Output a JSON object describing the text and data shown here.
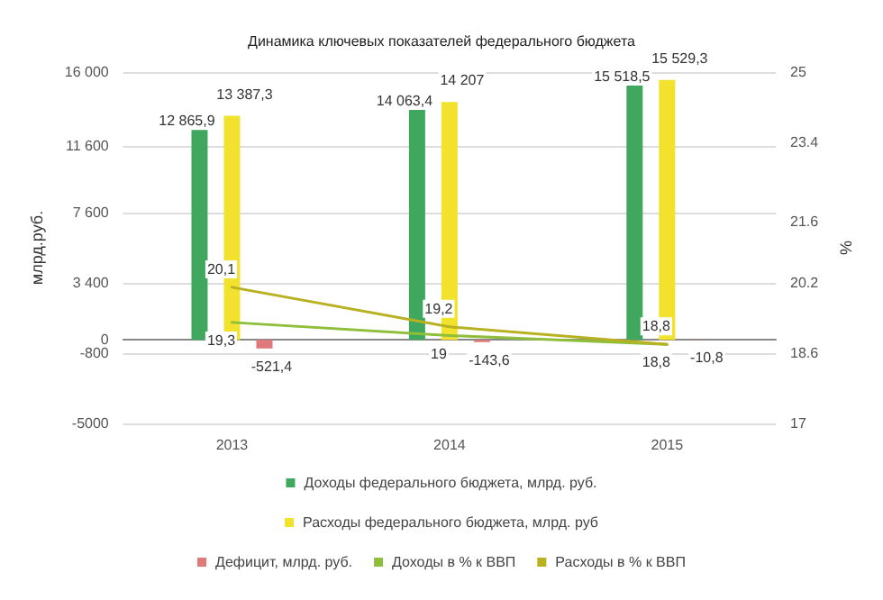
{
  "chart_data": {
    "type": "bar",
    "title": "Динамика ключевых показателей федерального бюджета",
    "ylabel": "млрд.руб.",
    "y2label": "%",
    "categories": [
      "2013",
      "2014",
      "2015"
    ],
    "series": [
      {
        "name": "Доходы федерального бюджета, млрд. руб.",
        "color": "#3fa85e",
        "values": [
          12865.9,
          14063.4,
          15518.5
        ],
        "value_labels": [
          "12 865,9",
          "14 063,4",
          "15 518,5"
        ]
      },
      {
        "name": "Расходы федерального бюджета, млрд. руб",
        "color": "#f2e22e",
        "values": [
          13387.3,
          14207,
          15529.3
        ],
        "value_labels": [
          "13 387,3",
          "14 207",
          "15 529,3"
        ]
      },
      {
        "name": "Дефицит, млрд. руб.",
        "color": "#e07a7a",
        "values": [
          -521.4,
          -143.6,
          -10.8
        ],
        "value_labels": [
          "-521,4",
          "-143,6",
          "-10,8"
        ]
      },
      {
        "name": "Доходы в % к ВВП",
        "type": "line",
        "axis": "y2",
        "color": "#8fbf3a",
        "values": [
          19.3,
          19,
          18.8
        ],
        "value_labels": [
          "19,3",
          "19",
          "18,8"
        ]
      },
      {
        "name": "Расходы в % к ВВП",
        "type": "line",
        "axis": "y2",
        "color": "#b8b222",
        "values": [
          20.1,
          19.2,
          18.8
        ],
        "value_labels": [
          "20,1",
          "19,2",
          "18,8"
        ]
      }
    ],
    "ylim": [
      -5000,
      16000
    ],
    "yticks": [
      -5000,
      {
        "value": -800,
        "label": "-800"
      },
      {
        "value": 0,
        "label": "0"
      },
      {
        "value": 3400,
        "label": "3 400"
      },
      {
        "value": 7600,
        "label": "7 600"
      },
      {
        "value": 11600,
        "label": "11 600"
      },
      {
        "value": 16000,
        "label": "16 000"
      }
    ],
    "y2lim": [
      17,
      25
    ],
    "y2ticks": [
      17,
      18.6,
      20.2,
      21.6,
      23.4,
      25
    ],
    "grid": "y",
    "legend": "bottom",
    "marker": "none"
  }
}
